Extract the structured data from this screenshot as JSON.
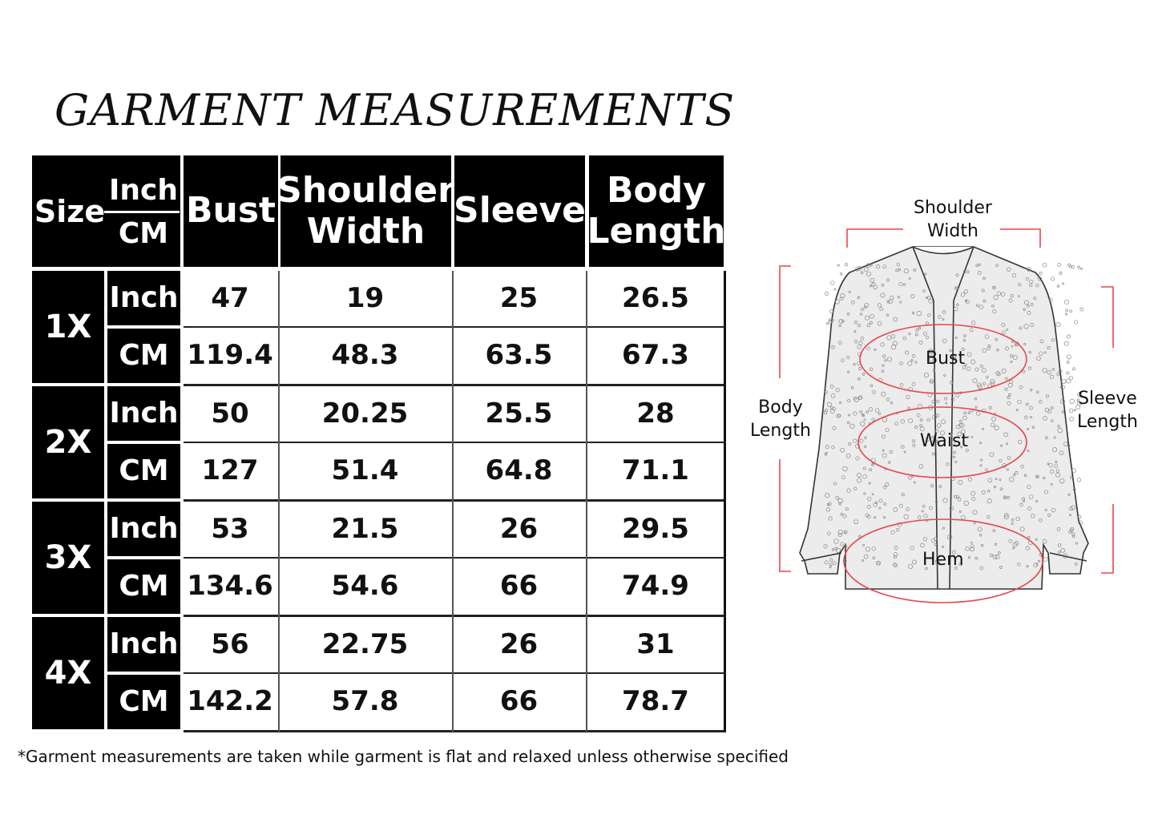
{
  "title": "GARMENT MEASUREMENTS",
  "table": {
    "header": {
      "size": "Size",
      "unit_top": "Inch",
      "unit_bottom": "CM",
      "columns": [
        "Bust",
        "Shoulder Width",
        "Sleeve",
        "Body Length"
      ]
    },
    "rows": [
      {
        "size": "1X",
        "inch_label": "Inch",
        "cm_label": "CM",
        "inch": [
          "47",
          "19",
          "25",
          "26.5"
        ],
        "cm": [
          "119.4",
          "48.3",
          "63.5",
          "67.3"
        ]
      },
      {
        "size": "2X",
        "inch_label": "Inch",
        "cm_label": "CM",
        "inch": [
          "50",
          "20.25",
          "25.5",
          "28"
        ],
        "cm": [
          "127",
          "51.4",
          "64.8",
          "71.1"
        ]
      },
      {
        "size": "3X",
        "inch_label": "Inch",
        "cm_label": "CM",
        "inch": [
          "53",
          "21.5",
          "26",
          "29.5"
        ],
        "cm": [
          "134.6",
          "54.6",
          "66",
          "74.9"
        ]
      },
      {
        "size": "4X",
        "inch_label": "Inch",
        "cm_label": "CM",
        "inch": [
          "56",
          "22.75",
          "26",
          "31"
        ],
        "cm": [
          "142.2",
          "57.8",
          "66",
          "78.7"
        ]
      }
    ]
  },
  "note": "*Garment measurements are taken while garment is flat and relaxed unless otherwise specified",
  "diagram": {
    "shoulder_width": "Shoulder\nWidth",
    "body_length": "Body\nLength",
    "sleeve_length": "Sleeve\nLength",
    "bust": "Bust",
    "waist": "Waist",
    "hem": "Hem",
    "marker_color": "#e8474a"
  }
}
